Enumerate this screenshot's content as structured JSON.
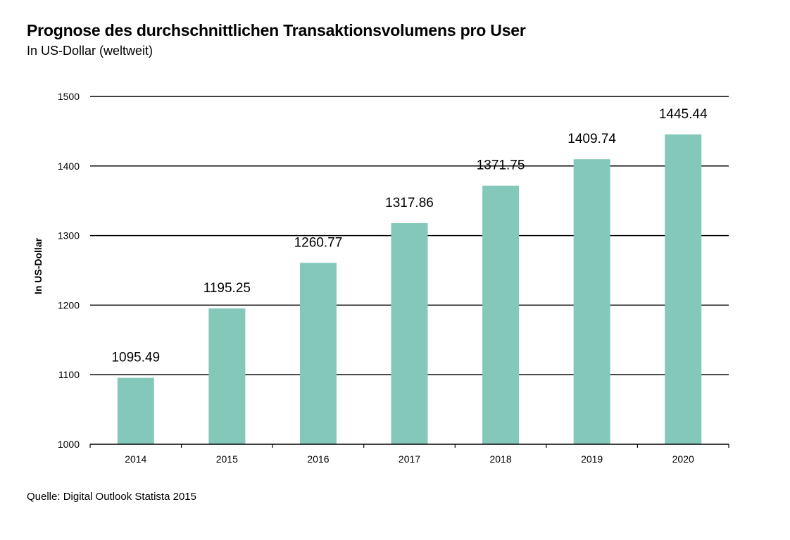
{
  "header": {
    "title": "Prognose des durchschnittlichen Transaktionsvolumens pro User",
    "subtitle": "In US-Dollar (weltweit)"
  },
  "footer": {
    "source": "Quelle: Digital Outlook Statista 2015"
  },
  "colors": {
    "bar": "#84c8b9",
    "grid": "#000000"
  },
  "chart_data": {
    "type": "bar",
    "title": "Prognose des durchschnittlichen Transaktionsvolumens pro User",
    "subtitle": "In US-Dollar (weltweit)",
    "xlabel": "",
    "ylabel": "In US-Dollar",
    "categories": [
      "2014",
      "2015",
      "2016",
      "2017",
      "2018",
      "2019",
      "2020"
    ],
    "values": [
      1095.49,
      1195.25,
      1260.77,
      1317.86,
      1371.75,
      1409.74,
      1445.44
    ],
    "value_labels": [
      "1095.49",
      "1195.25",
      "1260.77",
      "1317.86",
      "1371.75",
      "1409.74",
      "1445.44"
    ],
    "ylim": [
      1000,
      1500
    ],
    "yticks": [
      1000,
      1100,
      1200,
      1300,
      1400,
      1500
    ],
    "grid": true,
    "legend": "none"
  }
}
